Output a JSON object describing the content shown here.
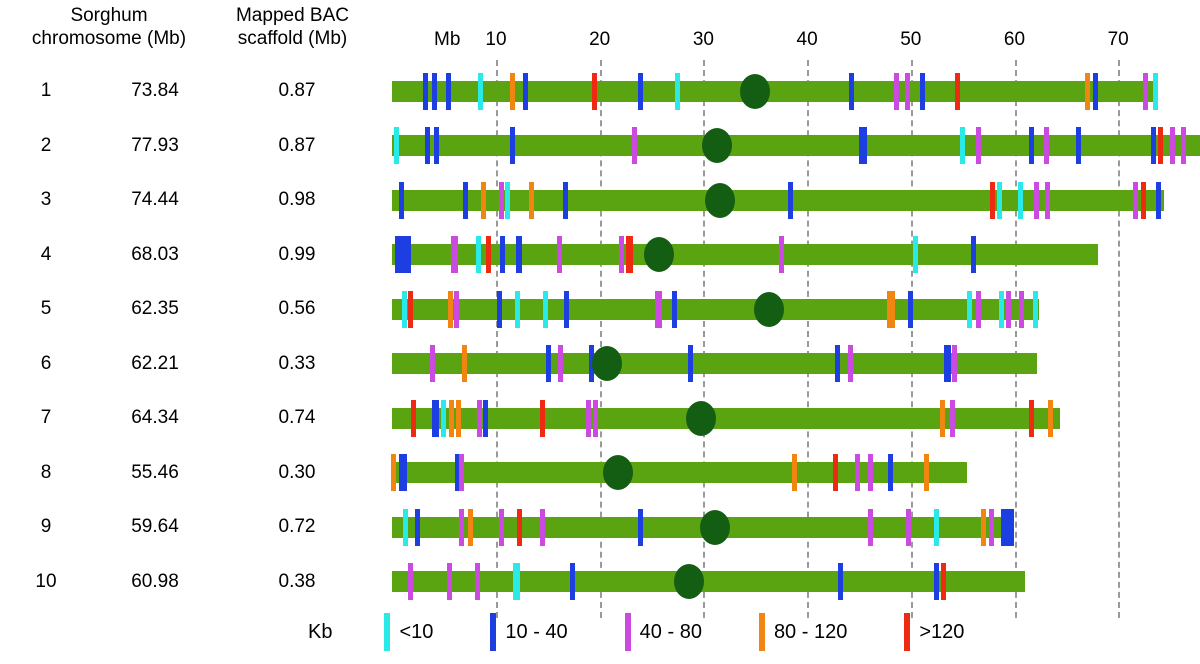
{
  "figure": {
    "left_column_header": "Sorghum\nchromosome (Mb)",
    "right_column_header": "Mapped BAC\nscaffold (Mb)"
  },
  "colors": {
    "t": "#29e9e9",
    "b": "#1d3ee0",
    "v": "#cb4be0",
    "o": "#f08511",
    "r": "#ee2a12",
    "bar_green": "#59a410",
    "centromere_green": "#145e14",
    "gridline_gray": "#9a9a9a"
  },
  "legend": {
    "title": "Kb",
    "items": [
      {
        "color_key": "t",
        "label": "<10"
      },
      {
        "color_key": "b",
        "label": "10 - 40"
      },
      {
        "color_key": "v",
        "label": "40 - 80"
      },
      {
        "color_key": "o",
        "label": "80 - 120"
      },
      {
        "color_key": "r",
        "label": ">120"
      }
    ]
  },
  "chart_data": {
    "type": "chromosome-ideogram",
    "title": "",
    "x_axis": {
      "unit_label": "Mb",
      "ticks": [
        10,
        20,
        30,
        40,
        50,
        60,
        70
      ],
      "range_mb": [
        0,
        78
      ],
      "gridlines": "dashed"
    },
    "size_class_labels": {
      "t": "<10 Kb",
      "b": "10 - 40 Kb",
      "v": "40 - 80 Kb",
      "o": "80 - 120 Kb",
      "r": ">120 Kb"
    },
    "chromosomes": [
      {
        "chr": "1",
        "chromosome_mb": "73.84",
        "scaffold_mb": "0.87",
        "centromere_mb": 35.0,
        "ticks": [
          [
            3.2,
            "b"
          ],
          [
            4.1,
            "b"
          ],
          [
            5.4,
            "b"
          ],
          [
            8.5,
            "t"
          ],
          [
            11.6,
            "o"
          ],
          [
            12.8,
            "b"
          ],
          [
            19.5,
            "r"
          ],
          [
            23.9,
            "b"
          ],
          [
            27.5,
            "t"
          ],
          [
            44.3,
            "b"
          ],
          [
            48.6,
            "v"
          ],
          [
            49.7,
            "v"
          ],
          [
            51.1,
            "b"
          ],
          [
            54.5,
            "r"
          ],
          [
            67.0,
            "o"
          ],
          [
            67.8,
            "b"
          ],
          [
            72.6,
            "v"
          ],
          [
            73.6,
            "t"
          ]
        ]
      },
      {
        "chr": "2",
        "chromosome_mb": "77.93",
        "scaffold_mb": "0.87",
        "centromere_mb": 31.3,
        "ticks": [
          [
            0.4,
            "t"
          ],
          [
            3.4,
            "b"
          ],
          [
            4.3,
            "b"
          ],
          [
            11.6,
            "b"
          ],
          [
            23.4,
            "v"
          ],
          [
            45.4,
            "b",
            8
          ],
          [
            55.0,
            "t"
          ],
          [
            56.5,
            "v"
          ],
          [
            61.6,
            "b"
          ],
          [
            63.1,
            "v"
          ],
          [
            66.2,
            "b"
          ],
          [
            73.4,
            "b"
          ],
          [
            74.1,
            "r"
          ],
          [
            75.2,
            "v"
          ],
          [
            76.3,
            "v"
          ]
        ]
      },
      {
        "chr": "3",
        "chromosome_mb": "74.44",
        "scaffold_mb": "0.98",
        "centromere_mb": 31.6,
        "ticks": [
          [
            0.9,
            "b"
          ],
          [
            7.1,
            "b"
          ],
          [
            8.8,
            "o"
          ],
          [
            10.5,
            "v"
          ],
          [
            11.1,
            "t"
          ],
          [
            13.4,
            "o"
          ],
          [
            16.7,
            "b"
          ],
          [
            38.4,
            "b"
          ],
          [
            57.9,
            "r"
          ],
          [
            58.6,
            "t"
          ],
          [
            60.6,
            "t"
          ],
          [
            62.1,
            "v"
          ],
          [
            63.2,
            "v"
          ],
          [
            71.7,
            "v"
          ],
          [
            72.4,
            "r"
          ],
          [
            73.9,
            "b"
          ]
        ]
      },
      {
        "chr": "4",
        "chromosome_mb": "68.03",
        "scaffold_mb": "0.99",
        "centromere_mb": 25.7,
        "ticks": [
          [
            1.0,
            "b",
            16
          ],
          [
            6.0,
            "v",
            7
          ],
          [
            8.3,
            "t"
          ],
          [
            9.3,
            "r"
          ],
          [
            10.6,
            "b"
          ],
          [
            12.2,
            "b",
            6
          ],
          [
            16.1,
            "v"
          ],
          [
            22.1,
            "v"
          ],
          [
            22.9,
            "r",
            7
          ],
          [
            37.5,
            "v"
          ],
          [
            50.5,
            "t"
          ],
          [
            56.0,
            "b"
          ]
        ]
      },
      {
        "chr": "5",
        "chromosome_mb": "62.35",
        "scaffold_mb": "0.56",
        "centromere_mb": 36.3,
        "ticks": [
          [
            1.2,
            "t"
          ],
          [
            1.8,
            "r"
          ],
          [
            5.6,
            "o"
          ],
          [
            6.2,
            "v"
          ],
          [
            10.3,
            "b"
          ],
          [
            12.1,
            "t"
          ],
          [
            14.8,
            "t"
          ],
          [
            16.8,
            "b"
          ],
          [
            25.7,
            "v",
            7
          ],
          [
            27.2,
            "b"
          ],
          [
            48.1,
            "o",
            8
          ],
          [
            50.0,
            "b"
          ],
          [
            55.7,
            "t"
          ],
          [
            56.5,
            "v"
          ],
          [
            58.7,
            "t"
          ],
          [
            59.4,
            "v"
          ],
          [
            60.7,
            "v"
          ],
          [
            62.0,
            "t"
          ]
        ]
      },
      {
        "chr": "6",
        "chromosome_mb": "62.21",
        "scaffold_mb": "0.33",
        "centromere_mb": 20.7,
        "ticks": [
          [
            3.9,
            "v"
          ],
          [
            7.0,
            "o"
          ],
          [
            15.1,
            "b"
          ],
          [
            16.2,
            "v"
          ],
          [
            19.2,
            "b"
          ],
          [
            28.8,
            "b"
          ],
          [
            42.9,
            "b"
          ],
          [
            44.2,
            "v"
          ],
          [
            53.5,
            "b",
            7
          ],
          [
            54.2,
            "v"
          ]
        ]
      },
      {
        "chr": "7",
        "chromosome_mb": "64.34",
        "scaffold_mb": "0.74",
        "centromere_mb": 29.8,
        "ticks": [
          [
            2.0,
            "r"
          ],
          [
            4.2,
            "b",
            7
          ],
          [
            4.9,
            "t"
          ],
          [
            5.7,
            "o"
          ],
          [
            6.4,
            "o"
          ],
          [
            8.4,
            "v"
          ],
          [
            9.0,
            "b"
          ],
          [
            14.5,
            "r"
          ],
          [
            18.9,
            "v"
          ],
          [
            19.6,
            "v"
          ],
          [
            53.1,
            "o"
          ],
          [
            54.0,
            "v"
          ],
          [
            61.6,
            "r"
          ],
          [
            63.5,
            "o"
          ]
        ]
      },
      {
        "chr": "8",
        "chromosome_mb": "55.46",
        "scaffold_mb": "0.30",
        "centromere_mb": 21.8,
        "ticks": [
          [
            0.1,
            "o"
          ],
          [
            1.0,
            "b",
            8
          ],
          [
            6.3,
            "b"
          ],
          [
            6.7,
            "v"
          ],
          [
            38.8,
            "o"
          ],
          [
            42.7,
            "r"
          ],
          [
            44.9,
            "v"
          ],
          [
            46.1,
            "v"
          ],
          [
            48.0,
            "b"
          ],
          [
            51.5,
            "o"
          ]
        ]
      },
      {
        "chr": "9",
        "chromosome_mb": "59.64",
        "scaffold_mb": "0.72",
        "centromere_mb": 31.1,
        "ticks": [
          [
            1.3,
            "t"
          ],
          [
            2.4,
            "b"
          ],
          [
            6.7,
            "v"
          ],
          [
            7.5,
            "o"
          ],
          [
            10.5,
            "v"
          ],
          [
            12.3,
            "r"
          ],
          [
            14.5,
            "v"
          ],
          [
            23.9,
            "b"
          ],
          [
            46.1,
            "v"
          ],
          [
            49.8,
            "v"
          ],
          [
            52.5,
            "t"
          ],
          [
            57.0,
            "o"
          ],
          [
            57.8,
            "v"
          ],
          [
            59.3,
            "b",
            13
          ]
        ]
      },
      {
        "chr": "10",
        "chromosome_mb": "60.98",
        "scaffold_mb": "0.38",
        "centromere_mb": 28.6,
        "ticks": [
          [
            1.8,
            "v"
          ],
          [
            5.5,
            "v"
          ],
          [
            8.2,
            "v"
          ],
          [
            12.0,
            "t",
            7
          ],
          [
            17.4,
            "b"
          ],
          [
            43.2,
            "b"
          ],
          [
            52.5,
            "b"
          ],
          [
            53.2,
            "r"
          ]
        ]
      }
    ]
  }
}
